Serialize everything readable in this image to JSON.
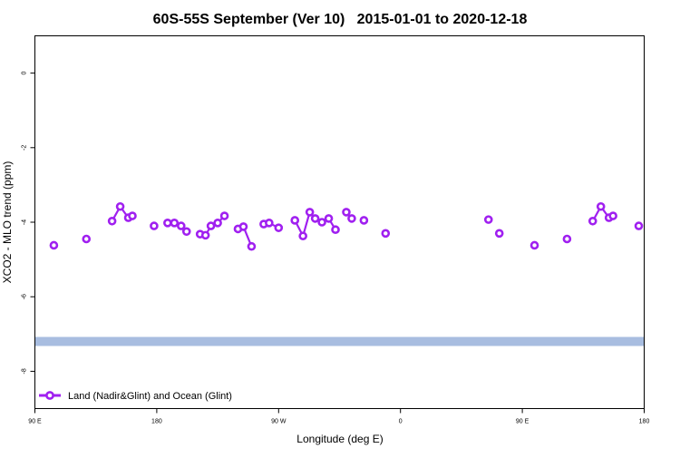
{
  "chart_data": {
    "type": "line",
    "title": "60S-55S September (Ver 10)   2015-01-01 to 2020-12-18",
    "xlabel": "Longitude (deg E)",
    "ylabel": "XCO2 - MLO trend (ppm)",
    "xlim": [
      90,
      540
    ],
    "ylim": [
      -9,
      1
    ],
    "xticks": [
      {
        "value": 90,
        "label": "90 E"
      },
      {
        "value": 180,
        "label": "180"
      },
      {
        "value": 270,
        "label": "90 W"
      },
      {
        "value": 360,
        "label": "0"
      },
      {
        "value": 450,
        "label": "90 E"
      },
      {
        "value": 540,
        "label": "180"
      }
    ],
    "yticks": [
      {
        "value": 0,
        "label": "0"
      },
      {
        "value": -2,
        "label": "-2"
      },
      {
        "value": -4,
        "label": "-4"
      },
      {
        "value": -6,
        "label": "-6"
      },
      {
        "value": -8,
        "label": "-8"
      }
    ],
    "band": {
      "y": -7.2,
      "color": "#a8bde0"
    },
    "series": [
      {
        "name": "Land (Nadir&Glint) and Ocean (Glint)",
        "color": "#a020f0",
        "segments": [
          [
            [
              104,
              -4.62
            ]
          ],
          [
            [
              128,
              -4.45
            ]
          ],
          [
            [
              147,
              -3.97
            ],
            [
              153,
              -3.58
            ],
            [
              159,
              -3.88
            ],
            [
              162,
              -3.83
            ]
          ],
          [
            [
              178,
              -4.1
            ]
          ],
          [
            [
              188,
              -4.02
            ],
            [
              193,
              -4.02
            ],
            [
              198,
              -4.1
            ],
            [
              202,
              -4.25
            ]
          ],
          [
            [
              212,
              -4.32
            ],
            [
              216,
              -4.35
            ],
            [
              220,
              -4.1
            ],
            [
              225,
              -4.02
            ],
            [
              230,
              -3.83
            ]
          ],
          [
            [
              240,
              -4.18
            ],
            [
              244,
              -4.12
            ],
            [
              250,
              -4.65
            ]
          ],
          [
            [
              259,
              -4.05
            ],
            [
              263,
              -4.02
            ],
            [
              270,
              -4.15
            ]
          ],
          [
            [
              282,
              -3.95
            ],
            [
              288,
              -4.37
            ],
            [
              293,
              -3.73
            ],
            [
              297,
              -3.9
            ],
            [
              302,
              -4.0
            ],
            [
              307,
              -3.9
            ],
            [
              312,
              -4.2
            ]
          ],
          [
            [
              320,
              -3.73
            ],
            [
              324,
              -3.9
            ]
          ],
          [
            [
              333,
              -3.95
            ]
          ],
          [
            [
              349,
              -4.3
            ]
          ],
          [
            [
              425,
              -3.93
            ]
          ],
          [
            [
              433,
              -4.3
            ]
          ],
          [
            [
              459,
              -4.62
            ]
          ],
          [
            [
              483,
              -4.45
            ]
          ],
          [
            [
              502,
              -3.97
            ],
            [
              508,
              -3.58
            ],
            [
              514,
              -3.88
            ],
            [
              517,
              -3.83
            ]
          ],
          [
            [
              536,
              -4.1
            ]
          ]
        ]
      }
    ],
    "legend": {
      "position": "bottom-left"
    }
  }
}
